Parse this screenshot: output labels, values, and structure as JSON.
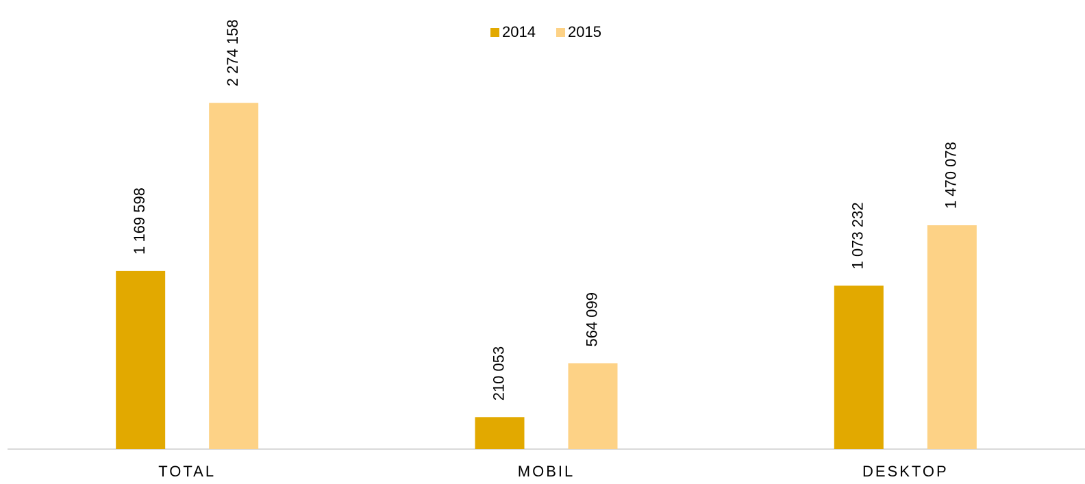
{
  "chart_data": {
    "type": "bar",
    "categories": [
      "TOTAL",
      "MOBIL",
      "DESKTOP"
    ],
    "series": [
      {
        "name": "2014",
        "color": "#e2a900",
        "values": [
          1169598,
          210053,
          1073232
        ],
        "value_labels": [
          "1 169 598",
          "210 053",
          "1 073 232"
        ]
      },
      {
        "name": "2015",
        "color": "#fdd286",
        "values": [
          2274158,
          564099,
          1470078
        ],
        "value_labels": [
          "2 274 158",
          "564 099",
          "1 470 078"
        ]
      }
    ],
    "ylim": [
      0,
      2500000
    ],
    "legend": "top"
  }
}
